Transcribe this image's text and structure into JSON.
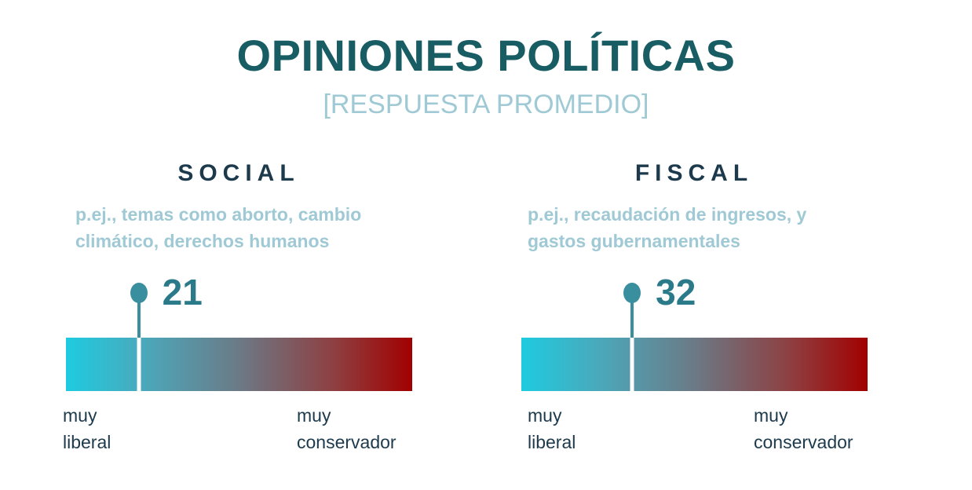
{
  "title": "OPINIONES POLÍTICAS",
  "subtitle": "[RESPUESTA PROMEDIO]",
  "chart_data": [
    {
      "type": "gauge",
      "title": "SOCIAL",
      "description": "p.ej., temas como aborto, cambio climático, derechos humanos",
      "description_line1": "p.ej., temas como aborto, cambio",
      "description_line2": "climático, derechos humanos",
      "value": 21,
      "value_label": "21",
      "range": [
        0,
        100
      ],
      "left_label_line1": "muy",
      "left_label_line2": "liberal",
      "right_label_line1": "muy",
      "right_label_line2": "conservador",
      "colors": {
        "left": "#1ecbe0",
        "mid": "#6b7a86",
        "right": "#a20000"
      }
    },
    {
      "type": "gauge",
      "title": "FISCAL",
      "description": "p.ej., recaudación de ingresos, y gastos gubernamentales",
      "description_line1": "p.ej., recaudación de ingresos, y",
      "description_line2": "gastos gubernamentales",
      "value": 32,
      "value_label": "32",
      "range": [
        0,
        100
      ],
      "left_label_line1": "muy",
      "left_label_line2": "liberal",
      "right_label_line1": "muy",
      "right_label_line2": "conservador",
      "colors": {
        "left": "#1ecbe0",
        "mid": "#6b7a86",
        "right": "#a20000"
      }
    }
  ]
}
